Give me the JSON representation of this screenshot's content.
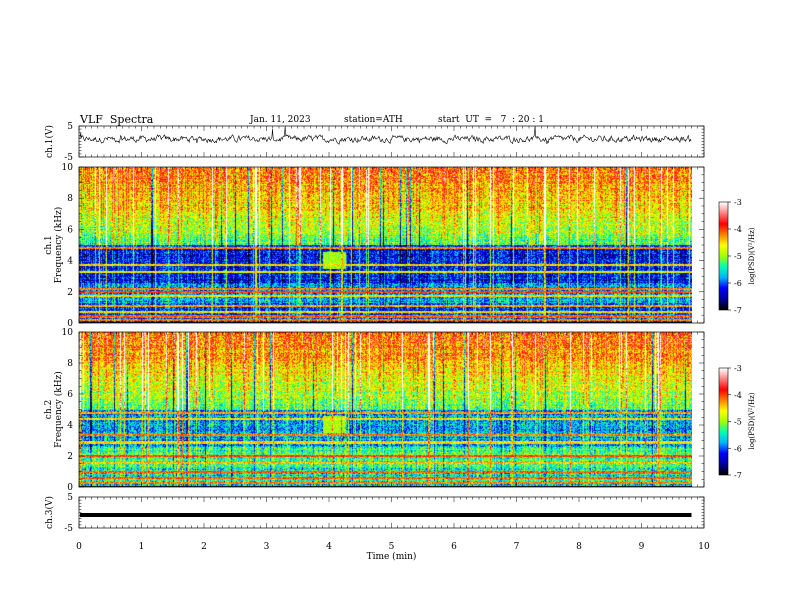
{
  "header": {
    "title": "VLF  Spectra",
    "date": "Jan. 11, 2023",
    "station": "station=ATH",
    "start": "start  UT  =   7  : 20 : 1"
  },
  "chart_data": [
    {
      "type": "line",
      "name": "waveform-ch1",
      "ylabel": "ch.1(V)",
      "ylim": [
        -5,
        5
      ],
      "yticks": [
        5,
        -5
      ],
      "xlim": [
        0,
        10
      ]
    },
    {
      "type": "heatmap",
      "name": "spectrogram-ch1",
      "ylabel": "Frequency  (kHz)",
      "ychannel": "ch.1",
      "ylim": [
        0,
        10
      ],
      "yticks": [
        0,
        2,
        4,
        6,
        8,
        10
      ],
      "xlim": [
        0,
        10
      ],
      "colorbar": {
        "label": "log(PSD)(V²/Hz)",
        "range": [
          -7,
          -3
        ],
        "ticks": [
          -3,
          -4,
          -5,
          -6,
          -7
        ]
      }
    },
    {
      "type": "heatmap",
      "name": "spectrogram-ch2",
      "ylabel": "Frequency  (kHz)",
      "ychannel": "ch.2",
      "ylim": [
        0,
        10
      ],
      "yticks": [
        0,
        2,
        4,
        6,
        8,
        10
      ],
      "xlim": [
        0,
        10
      ],
      "colorbar": {
        "label": "log(PSD)(V²/Hz)",
        "range": [
          -7,
          -3
        ],
        "ticks": [
          -3,
          -4,
          -5,
          -6,
          -7
        ]
      }
    },
    {
      "type": "line",
      "name": "waveform-ch3",
      "ylabel": "ch.3(V)",
      "ylim": [
        -5,
        5
      ],
      "yticks": [
        5,
        -5
      ],
      "xlim": [
        0,
        10
      ]
    }
  ],
  "xaxis": {
    "label": "Time  (min)",
    "ticks": [
      0,
      1,
      2,
      3,
      4,
      5,
      6,
      7,
      8,
      9,
      10
    ],
    "data_end": 9.8
  },
  "colors": {
    "colormap": [
      "#000000",
      "#0000a0",
      "#0000ff",
      "#00b4ff",
      "#00ffb4",
      "#a0ff00",
      "#ffff00",
      "#ff8000",
      "#ff0000",
      "#ff8080",
      "#ffffff"
    ]
  }
}
